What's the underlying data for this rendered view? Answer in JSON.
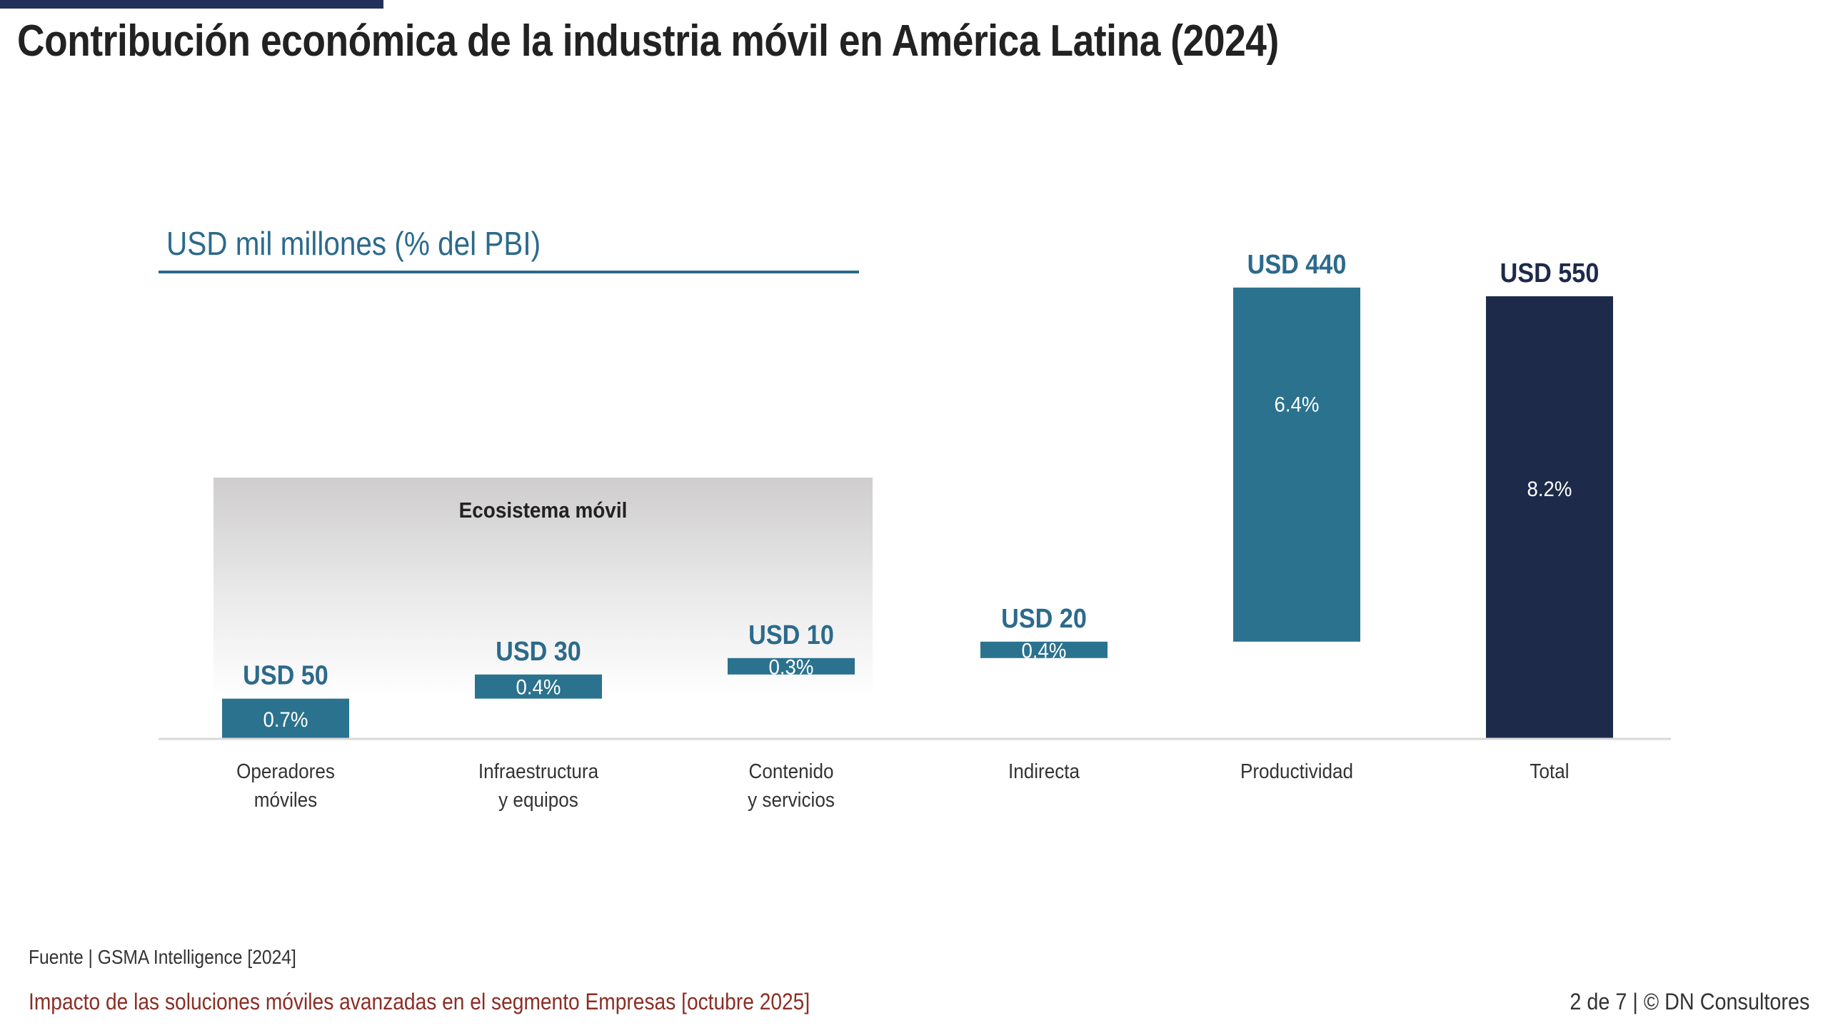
{
  "header": {
    "title": "Contribución económica de la industria móvil en América Latina (2024)",
    "accent_color": "#22315a"
  },
  "unit_label": "USD mil millones (% del PBI)",
  "chart_data": {
    "type": "bar",
    "subtype": "waterfall",
    "title": "Contribución económica de la industria móvil en América Latina (2024)",
    "ylabel": "USD mil millones (% del PBI)",
    "xlabel": "",
    "categories": [
      [
        "Operadores",
        "móviles"
      ],
      [
        "Infraestructura",
        "y equipos"
      ],
      [
        "Contenido",
        "y servicios"
      ],
      [
        "Indirecta"
      ],
      [
        "Productividad"
      ],
      [
        "Total"
      ]
    ],
    "values": [
      50,
      30,
      10,
      20,
      440,
      550
    ],
    "value_labels": [
      "USD 50",
      "USD 30",
      "USD 10",
      "USD 20",
      "USD 440",
      "USD 550"
    ],
    "pct_gdp": [
      0.7,
      0.4,
      0.3,
      0.4,
      6.4,
      8.2
    ],
    "pct_labels": [
      "0.7%",
      "0.4%",
      "0.3%",
      "0.4%",
      "6.4%",
      "8.2%"
    ],
    "is_total": [
      false,
      false,
      false,
      false,
      false,
      true
    ],
    "ylim": [
      0,
      550
    ],
    "grid": false,
    "legend": "none",
    "group_annotation": {
      "label": "Ecosistema móvil",
      "spans_categories": [
        0,
        1,
        2
      ]
    },
    "colors": {
      "increment": "#2b728e",
      "total": "#1d2a4a",
      "value_label_increment": "#2b6a8c",
      "value_label_total": "#1d2a4a",
      "axis": "#d9d9d9",
      "category_text": "#333333",
      "group_box_top": "#cfcdce"
    }
  },
  "footer": {
    "source": "Fuente | GSMA Intelligence [2024]",
    "document": "Impacto de las soluciones móviles avanzadas en el segmento Empresas [octubre 2025]",
    "page": "2 de 7 | © DN Consultores"
  }
}
